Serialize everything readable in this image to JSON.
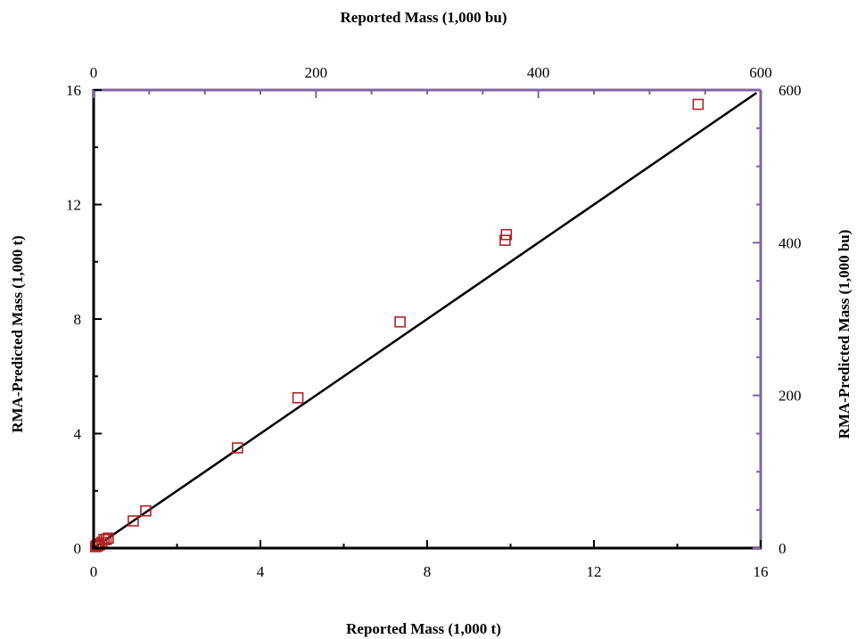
{
  "chart_data": {
    "type": "scatter",
    "title": "",
    "xlabel": "Reported Mass (1,000 t)",
    "ylabel": "RMA-Predicted Mass (1,000 t)",
    "x2label": "Reported Mass (1,000 bu)",
    "y2label": "RMA-Predicted Mass (1,000 bu)",
    "xlim": [
      0,
      16
    ],
    "ylim": [
      0,
      16
    ],
    "x2lim": [
      0,
      600
    ],
    "y2lim": [
      0,
      600
    ],
    "xticks": [
      "0",
      "4",
      "8",
      "12",
      "16"
    ],
    "yticks": [
      "0",
      "4",
      "8",
      "12",
      "16"
    ],
    "x2ticks": [
      "0",
      "200",
      "400",
      "600"
    ],
    "y2ticks": [
      "0",
      "200",
      "400",
      "600"
    ],
    "grid": false,
    "colors": {
      "points": "#b22222",
      "line": "#000000",
      "secondary_axis": "#8064a2"
    },
    "series": [
      {
        "type": "scatter",
        "x": [
          0.05,
          0.08,
          0.1,
          0.12,
          0.15,
          0.2,
          0.25,
          0.3,
          0.35,
          0.95,
          1.25,
          3.45,
          4.9,
          7.35,
          9.87,
          9.9,
          14.5
        ],
        "y": [
          0.05,
          0.1,
          0.08,
          0.15,
          0.12,
          0.2,
          0.3,
          0.3,
          0.35,
          0.95,
          1.3,
          3.5,
          5.25,
          7.9,
          10.75,
          10.95,
          15.5
        ]
      },
      {
        "type": "line",
        "x": [
          0,
          15.9
        ],
        "y": [
          0,
          15.9
        ]
      }
    ]
  }
}
